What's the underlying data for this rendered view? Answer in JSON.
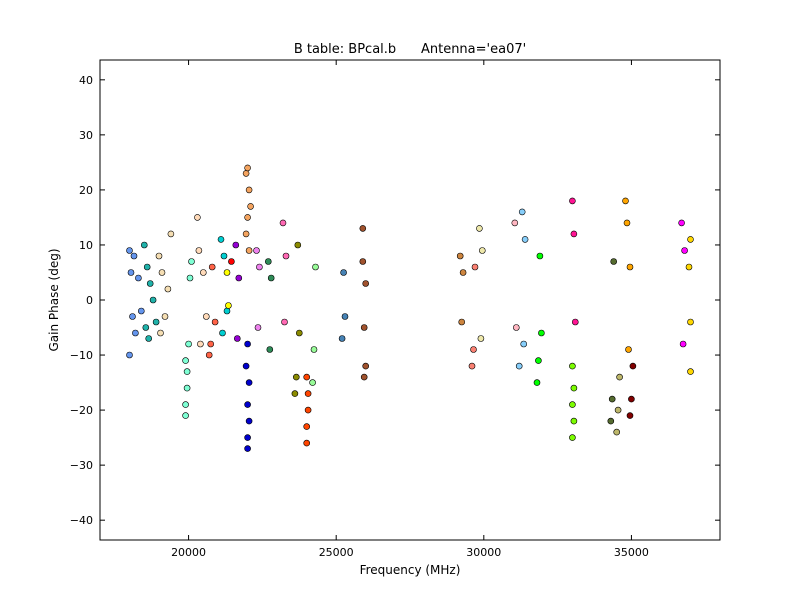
{
  "chart_data": {
    "type": "scatter",
    "title": "B table: BPcal.b      Antenna='ea07'",
    "xlabel": "Frequency (MHz)",
    "ylabel": "Gain Phase (deg)",
    "xlim": [
      17000,
      38000
    ],
    "ylim": [
      -43.6,
      43.6
    ],
    "xticks": [
      20000,
      25000,
      30000,
      35000
    ],
    "yticks": [
      -40,
      -30,
      -20,
      -10,
      0,
      10,
      20,
      30,
      40
    ],
    "grid": false,
    "legend": "none",
    "marker": "circle",
    "series": [
      {
        "color": "#6495ed",
        "points": [
          [
            18000,
            9
          ],
          [
            18000,
            -10
          ],
          [
            18050,
            5
          ],
          [
            18100,
            -3
          ],
          [
            18150,
            8
          ],
          [
            18200,
            -6
          ],
          [
            18300,
            4
          ],
          [
            18400,
            -2
          ]
        ]
      },
      {
        "color": "#20b2aa",
        "points": [
          [
            18500,
            10
          ],
          [
            18550,
            -5
          ],
          [
            18600,
            6
          ],
          [
            18650,
            -7
          ],
          [
            18700,
            3
          ],
          [
            18800,
            0
          ],
          [
            18900,
            -4
          ]
        ]
      },
      {
        "color": "#f5deb3",
        "points": [
          [
            19000,
            8
          ],
          [
            19050,
            -6
          ],
          [
            19100,
            5
          ],
          [
            19200,
            -3
          ],
          [
            19300,
            2
          ],
          [
            19400,
            12
          ]
        ]
      },
      {
        "color": "#7fffd4",
        "points": [
          [
            19900,
            -21
          ],
          [
            19900,
            -19
          ],
          [
            19950,
            -16
          ],
          [
            19950,
            -13
          ],
          [
            19900,
            -11
          ],
          [
            20000,
            -8
          ],
          [
            20050,
            4
          ],
          [
            20100,
            7
          ]
        ]
      },
      {
        "color": "#ffdab9",
        "points": [
          [
            20300,
            15
          ],
          [
            20350,
            9
          ],
          [
            20400,
            -8
          ],
          [
            20500,
            5
          ],
          [
            20600,
            -3
          ]
        ]
      },
      {
        "color": "#ff6347",
        "points": [
          [
            20700,
            -10
          ],
          [
            20750,
            -8
          ],
          [
            20800,
            6
          ],
          [
            20900,
            -4
          ]
        ]
      },
      {
        "color": "#00ced1",
        "points": [
          [
            21100,
            11
          ],
          [
            21150,
            -6
          ],
          [
            21200,
            8
          ],
          [
            21300,
            -2
          ]
        ]
      },
      {
        "color": "#ffff00",
        "points": [
          [
            21300,
            5
          ],
          [
            21350,
            -1
          ]
        ]
      },
      {
        "color": "#ff0000",
        "points": [
          [
            21450,
            7
          ]
        ]
      },
      {
        "color": "#9400d3",
        "points": [
          [
            21600,
            10
          ],
          [
            21650,
            -7
          ],
          [
            21700,
            4
          ]
        ]
      },
      {
        "color": "#f4a460",
        "points": [
          [
            21950,
            23
          ],
          [
            22000,
            24
          ],
          [
            22050,
            20
          ],
          [
            22100,
            17
          ],
          [
            22000,
            15
          ],
          [
            21950,
            12
          ],
          [
            22050,
            9
          ]
        ]
      },
      {
        "color": "#0000cd",
        "points": [
          [
            22000,
            -27
          ],
          [
            22000,
            -25
          ],
          [
            22050,
            -22
          ],
          [
            22000,
            -19
          ],
          [
            22050,
            -15
          ],
          [
            21950,
            -12
          ],
          [
            22000,
            -8
          ]
        ]
      },
      {
        "color": "#ee82ee",
        "points": [
          [
            22300,
            9
          ],
          [
            22350,
            -5
          ],
          [
            22400,
            6
          ]
        ]
      },
      {
        "color": "#2e8b57",
        "points": [
          [
            22700,
            7
          ],
          [
            22750,
            -9
          ],
          [
            22800,
            4
          ]
        ]
      },
      {
        "color": "#ff69b4",
        "points": [
          [
            23200,
            14
          ],
          [
            23250,
            -4
          ],
          [
            23300,
            8
          ]
        ]
      },
      {
        "color": "#8b8b00",
        "points": [
          [
            23600,
            -17
          ],
          [
            23650,
            -14
          ],
          [
            23700,
            10
          ],
          [
            23750,
            -6
          ]
        ]
      },
      {
        "color": "#ff4500",
        "points": [
          [
            24000,
            -26
          ],
          [
            24000,
            -23
          ],
          [
            24050,
            -20
          ],
          [
            24050,
            -17
          ],
          [
            24000,
            -14
          ]
        ]
      },
      {
        "color": "#98fb98",
        "points": [
          [
            24200,
            -15
          ],
          [
            24250,
            -9
          ],
          [
            24300,
            6
          ]
        ]
      },
      {
        "color": "#4682b4",
        "points": [
          [
            25200,
            -7
          ],
          [
            25250,
            5
          ],
          [
            25300,
            -3
          ]
        ]
      },
      {
        "color": "#a0522d",
        "points": [
          [
            25900,
            13
          ],
          [
            25950,
            -14
          ],
          [
            26000,
            -12
          ],
          [
            25900,
            7
          ],
          [
            25950,
            -5
          ],
          [
            26000,
            3
          ]
        ]
      },
      {
        "color": "#cd853f",
        "points": [
          [
            29200,
            8
          ],
          [
            29250,
            -4
          ],
          [
            29300,
            5
          ]
        ]
      },
      {
        "color": "#fa8072",
        "points": [
          [
            29600,
            -12
          ],
          [
            29650,
            -9
          ],
          [
            29700,
            6
          ]
        ]
      },
      {
        "color": "#eee8aa",
        "points": [
          [
            29850,
            13
          ],
          [
            29900,
            -7
          ],
          [
            29950,
            9
          ]
        ]
      },
      {
        "color": "#87cefa",
        "points": [
          [
            31300,
            16
          ],
          [
            31350,
            -8
          ],
          [
            31400,
            11
          ],
          [
            31200,
            -12
          ]
        ]
      },
      {
        "color": "#ffb6c1",
        "points": [
          [
            31050,
            14
          ],
          [
            31100,
            -5
          ]
        ]
      },
      {
        "color": "#00ff00",
        "points": [
          [
            31800,
            -15
          ],
          [
            31850,
            -11
          ],
          [
            31900,
            8
          ],
          [
            31950,
            -6
          ]
        ]
      },
      {
        "color": "#ff1493",
        "points": [
          [
            33000,
            18
          ],
          [
            33050,
            12
          ],
          [
            33100,
            -4
          ]
        ]
      },
      {
        "color": "#7cfc00",
        "points": [
          [
            33000,
            -25
          ],
          [
            33050,
            -22
          ],
          [
            33000,
            -19
          ],
          [
            33050,
            -16
          ],
          [
            33000,
            -12
          ]
        ]
      },
      {
        "color": "#556b2f",
        "points": [
          [
            34300,
            -22
          ],
          [
            34350,
            -18
          ],
          [
            34400,
            7
          ]
        ]
      },
      {
        "color": "#bdb76b",
        "points": [
          [
            34500,
            -24
          ],
          [
            34550,
            -20
          ],
          [
            34600,
            -14
          ]
        ]
      },
      {
        "color": "#ffa500",
        "points": [
          [
            34800,
            18
          ],
          [
            34850,
            14
          ],
          [
            34900,
            -9
          ],
          [
            34950,
            6
          ]
        ]
      },
      {
        "color": "#800000",
        "points": [
          [
            34950,
            -21
          ],
          [
            35000,
            -18
          ],
          [
            35050,
            -12
          ]
        ]
      },
      {
        "color": "#ff00ff",
        "points": [
          [
            36700,
            14
          ],
          [
            36750,
            -8
          ],
          [
            36800,
            9
          ]
        ]
      },
      {
        "color": "#ffd700",
        "points": [
          [
            37000,
            11
          ],
          [
            37000,
            -13
          ],
          [
            36950,
            6
          ],
          [
            37000,
            -4
          ]
        ]
      }
    ]
  }
}
